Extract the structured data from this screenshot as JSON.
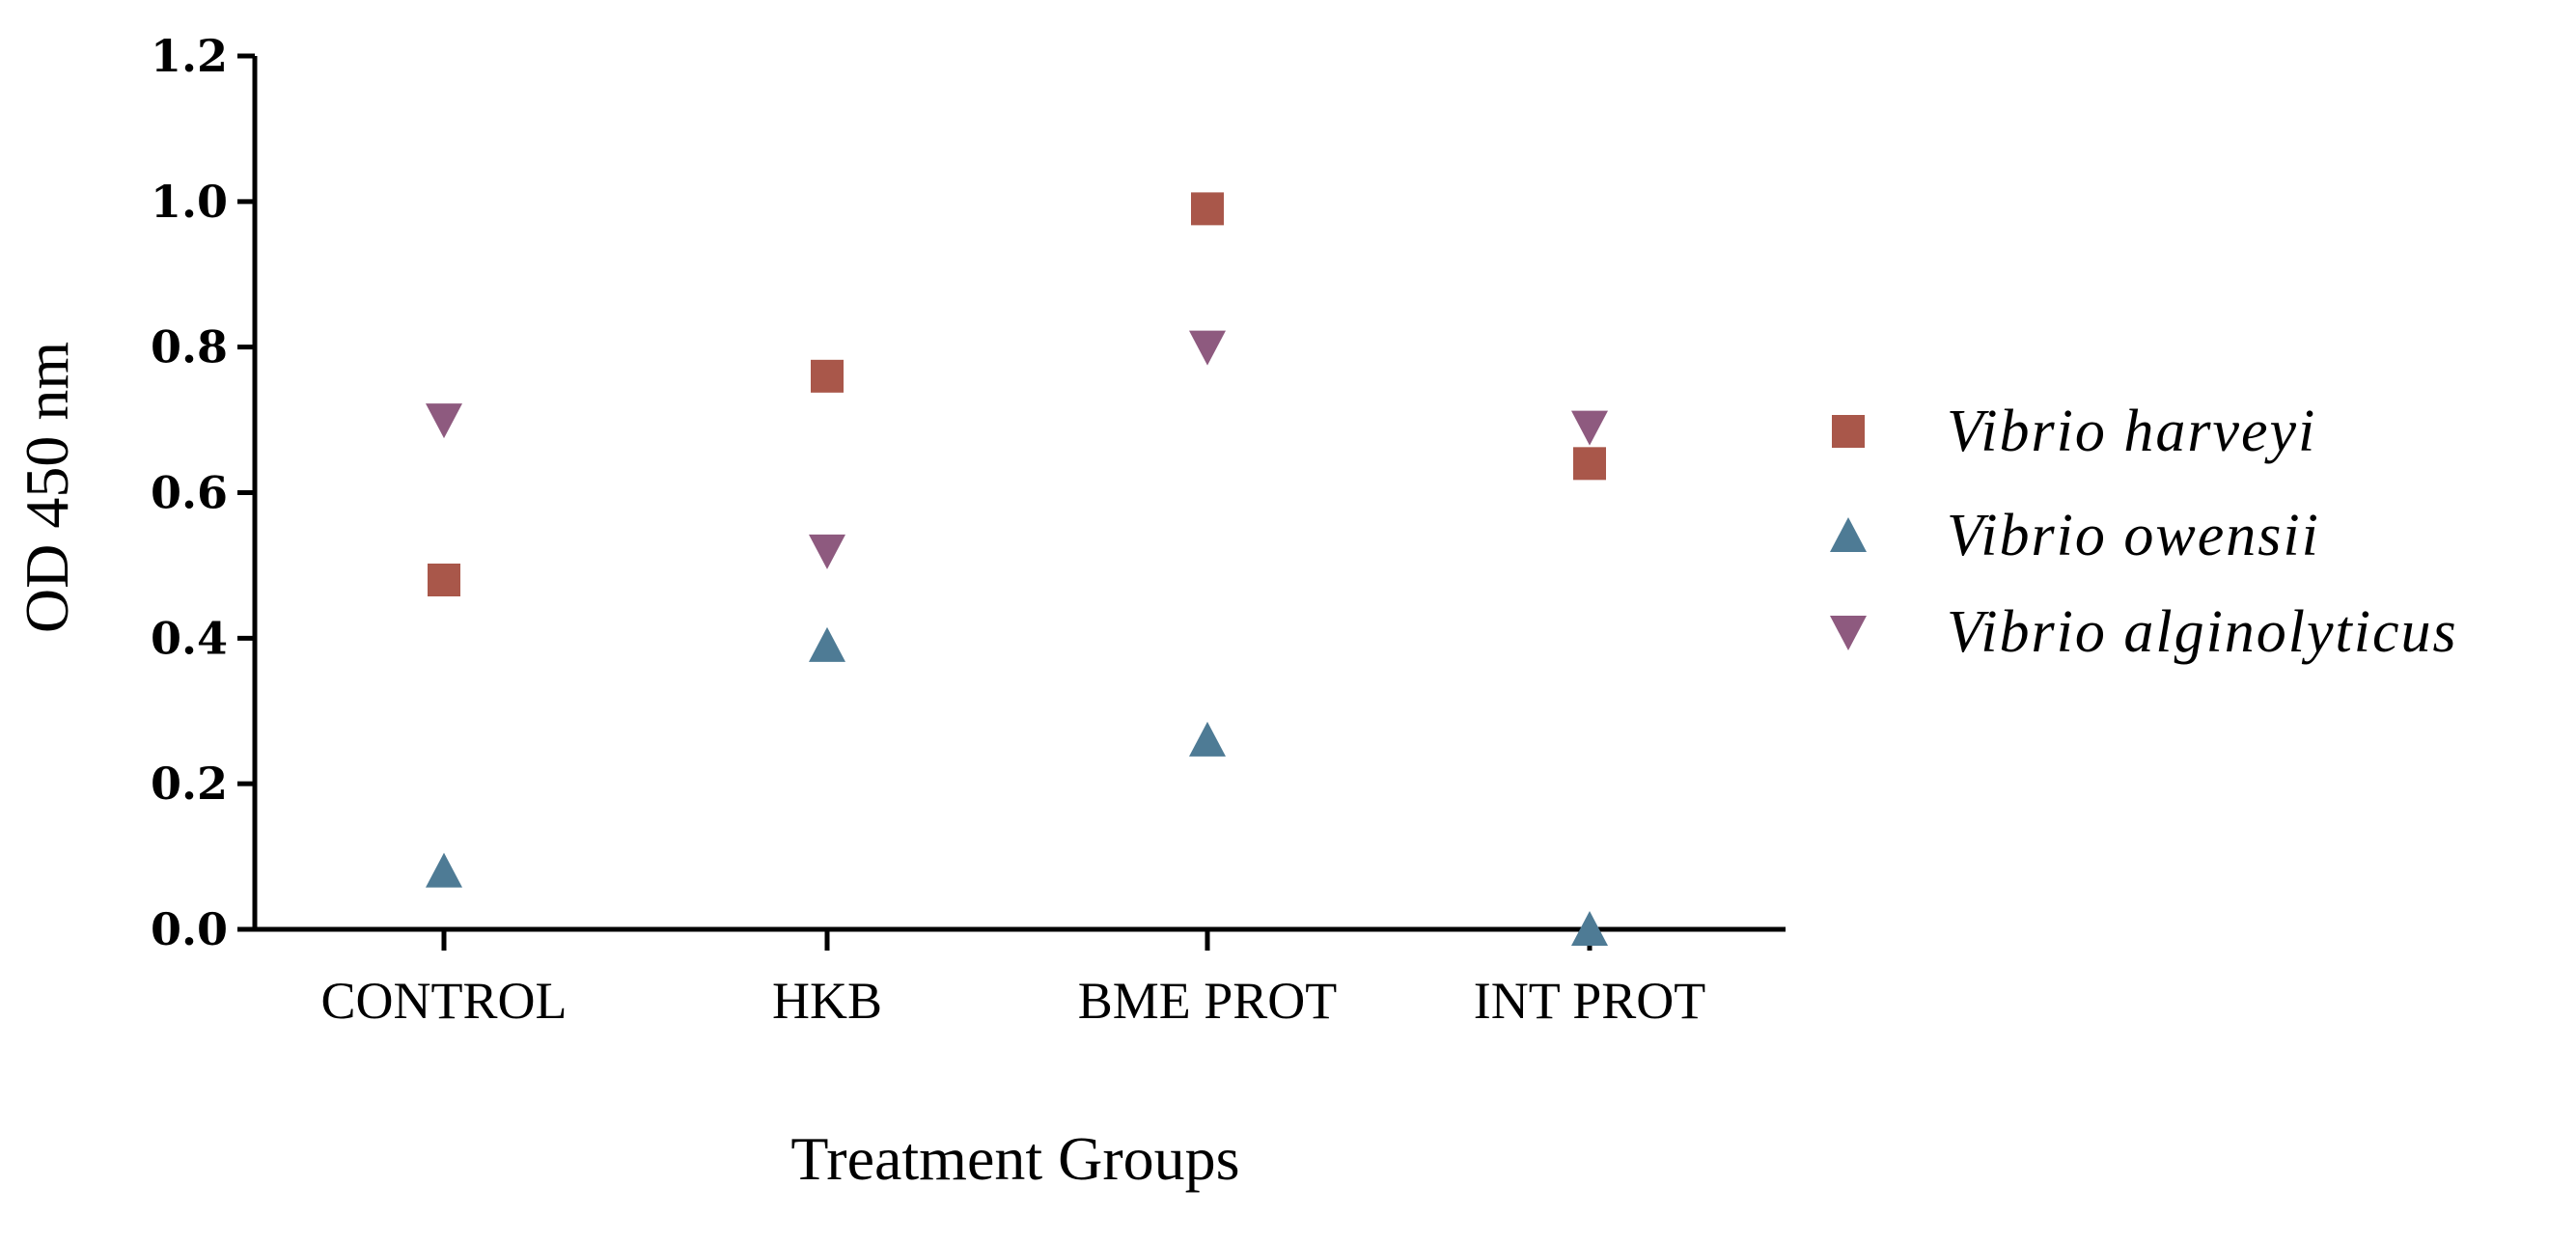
{
  "chart_data": {
    "type": "scatter",
    "title": "",
    "xlabel": "Treatment Groups",
    "ylabel": "OD 450 nm",
    "categories": [
      "CONTROL",
      "HKB",
      "BME PROT",
      "INT PROT"
    ],
    "ylim": [
      0,
      1.2
    ],
    "yticks": [
      "0.0",
      "0.2",
      "0.4",
      "0.6",
      "0.8",
      "1.0",
      "1.2"
    ],
    "grid": false,
    "legend_position": "right",
    "series": [
      {
        "name": "Vibrio harveyi",
        "marker": "square",
        "color": "#A9574A",
        "values": [
          0.48,
          0.76,
          0.99,
          0.64
        ]
      },
      {
        "name": "Vibrio owensii",
        "marker": "triangle-up",
        "color": "#4E7B95",
        "values": [
          0.08,
          0.39,
          0.26,
          0.0
        ]
      },
      {
        "name": "Vibrio alginolyticus",
        "marker": "triangle-down",
        "color": "#8E5A7F",
        "values": [
          0.7,
          0.52,
          0.8,
          0.69
        ]
      }
    ]
  }
}
